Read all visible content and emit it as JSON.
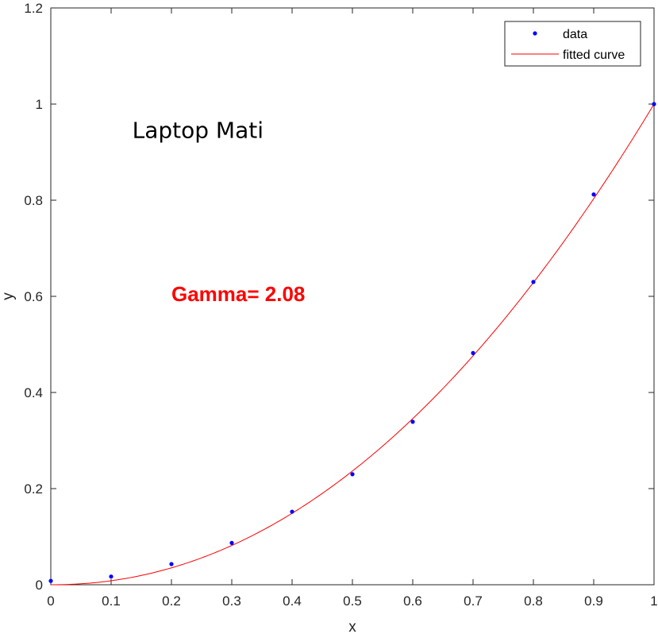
{
  "chart_data": {
    "type": "scatter",
    "title": "",
    "xlabel": "x",
    "ylabel": "y",
    "xlim": [
      0,
      1
    ],
    "ylim": [
      0,
      1.2
    ],
    "xticks": [
      "0",
      "0.1",
      "0.2",
      "0.3",
      "0.4",
      "0.5",
      "0.6",
      "0.7",
      "0.8",
      "0.9",
      "1"
    ],
    "yticks": [
      "0",
      "0.2",
      "0.4",
      "0.6",
      "0.8",
      "1",
      "1.2"
    ],
    "grid": false,
    "legend_position": "top-right",
    "series": [
      {
        "name": "data",
        "kind": "points",
        "color": "#0000ff",
        "x": [
          0,
          0.1,
          0.2,
          0.3,
          0.4,
          0.5,
          0.6,
          0.7,
          0.8,
          0.9,
          1.0
        ],
        "y": [
          0.008,
          0.017,
          0.043,
          0.087,
          0.152,
          0.23,
          0.339,
          0.482,
          0.63,
          0.812,
          1.0
        ]
      },
      {
        "name": "fitted curve",
        "kind": "line",
        "color": "#ff0000",
        "gamma": 2.08
      }
    ],
    "annotations": [
      {
        "text": "Laptop Mati",
        "x": 0.135,
        "y": 0.93,
        "color": "#000000"
      },
      {
        "text": "Gamma= 2.08",
        "x": 0.2,
        "y": 0.59,
        "color": "#ff0000"
      }
    ]
  }
}
